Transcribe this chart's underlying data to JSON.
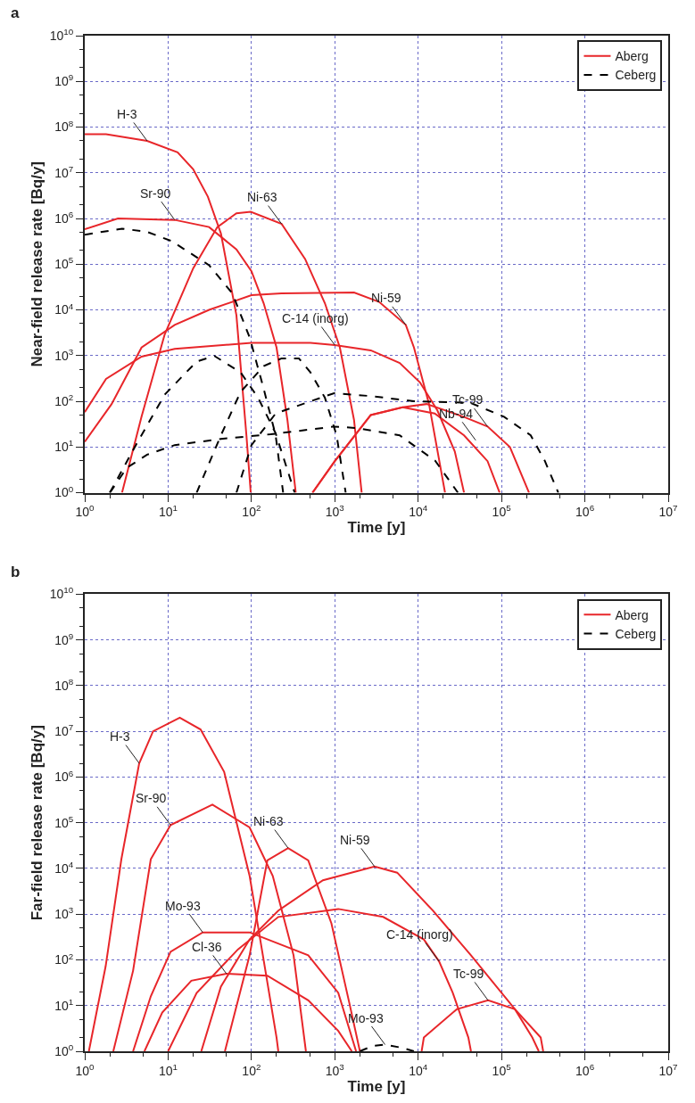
{
  "chart_data": [
    {
      "type": "line",
      "title": "a",
      "xlabel": "Time [y]",
      "ylabel": "Near-field release rate [Bq/y]",
      "log": "xy",
      "grid": true,
      "legend": "top right",
      "xlim": [
        1,
        10000000
      ],
      "ylim": [
        1,
        10000000000
      ],
      "xticks": [
        {
          "value": 1,
          "label": "10$^{0}$"
        },
        {
          "value": 10,
          "label": "10$^{1}$"
        },
        {
          "value": 100,
          "label": "10$^{2}$"
        },
        {
          "value": 1000,
          "label": "10$^{3}$"
        },
        {
          "value": 10000,
          "label": "10$^{4}$"
        },
        {
          "value": 100000,
          "label": "10$^{5}$"
        },
        {
          "value": 1000000,
          "label": "10$^{6}$"
        },
        {
          "value": 10000000,
          "label": "10$^{7}$"
        }
      ],
      "yticks": [
        {
          "value": 1,
          "label": "10$^{0}$"
        },
        {
          "value": 10,
          "label": "10$^{1}$"
        },
        {
          "value": 100,
          "label": "10$^{2}$"
        },
        {
          "value": 1000,
          "label": "10$^{3}$"
        },
        {
          "value": 10000,
          "label": "10$^{4}$"
        },
        {
          "value": 100000,
          "label": "10$^{5}$"
        },
        {
          "value": 1000000,
          "label": "10$^{6}$"
        },
        {
          "value": 10000000,
          "label": "10$^{7}$"
        },
        {
          "value": 100000000,
          "label": "10$^{8}$"
        },
        {
          "value": 1000000000,
          "label": "10$^{9}$"
        },
        {
          "value": 10000000000,
          "label": "10$^{10}$"
        }
      ],
      "series": [
        {
          "name": "Aberg",
          "color": "#e8262a",
          "line_style": "solid",
          "x": [
            1,
            1.8,
            5.6,
            13,
            20,
            30,
            43,
            66,
            87,
            98
          ],
          "values": [
            70000000,
            70000000,
            50000000,
            28000000,
            12000000,
            3000000,
            470000,
            7600,
            18,
            1
          ]
        },
        {
          "color": "#e8262a",
          "line_style": "solid",
          "x": [
            1,
            2.5,
            12,
            31,
            66,
            100,
            140,
            200,
            270,
            340
          ],
          "values": [
            580000,
            1000000,
            930000,
            650000,
            210000,
            70000,
            14000,
            1500,
            39,
            1
          ]
        },
        {
          "color": "#e8262a",
          "line_style": "solid",
          "x": [
            2.8,
            4.8,
            9.1,
            20,
            39,
            66,
            98,
            230,
            440,
            760,
            1150,
            1700,
            2100
          ],
          "values": [
            1,
            46,
            2900,
            81000,
            650000,
            1300000,
            1400000,
            760000,
            130000,
            14000,
            1500,
            39,
            1
          ]
        },
        {
          "color": "#e8262a",
          "line_style": "solid",
          "x": [
            1,
            2.1,
            4.8,
            12,
            31,
            100,
            230,
            1700,
            3400,
            7100,
            8900,
            13500,
            21000
          ],
          "values": [
            13,
            87,
            1500,
            4700,
            10000,
            21000,
            23000,
            24000,
            15000,
            4700,
            1500,
            87,
            1
          ]
        },
        {
          "color": "#e8262a",
          "line_style": "solid",
          "x": [
            1,
            1.8,
            4.8,
            12,
            100,
            510,
            1000,
            2700,
            6000,
            10500,
            17000,
            27500,
            35500
          ],
          "values": [
            58,
            310,
            950,
            1400,
            1900,
            1900,
            1700,
            1300,
            690,
            260,
            63,
            8,
            1
          ]
        },
        {
          "color": "#e8262a",
          "line_style": "solid",
          "x": [
            540,
            1000,
            2700,
            6500,
            12600,
            35000,
            68000,
            126000,
            214000
          ],
          "values": [
            1,
            4.9,
            50,
            74,
            87,
            46,
            28,
            10,
            1
          ]
        },
        {
          "color": "#e8262a",
          "line_style": "solid",
          "x": [
            540,
            1000,
            2700,
            6500,
            15800,
            35500,
            68000,
            95000
          ],
          "values": [
            1,
            4.9,
            50,
            74,
            54,
            18,
            4.9,
            1
          ]
        },
        {
          "name": "Ceberg",
          "color": "#000000",
          "line_style": "dashed",
          "x": [
            1,
            2.8,
            5.6,
            11,
            31,
            59,
            95,
            140,
            195,
            240
          ],
          "values": [
            440000,
            600000,
            510000,
            320000,
            95000,
            23000,
            2500,
            190,
            18,
            1
          ]
        },
        {
          "color": "#000000",
          "line_style": "dashed",
          "x": [
            2,
            4.1,
            9.1,
            22,
            36,
            74,
            120,
            195,
            330
          ],
          "values": [
            1,
            11,
            140,
            740,
            980,
            430,
            120,
            20,
            1
          ]
        },
        {
          "color": "#000000",
          "line_style": "dashed",
          "x": [
            22,
            43,
            74,
            140,
            230,
            370,
            510,
            760,
            1050,
            1350
          ],
          "values": [
            1,
            18,
            160,
            590,
            870,
            870,
            430,
            120,
            18,
            1
          ]
        },
        {
          "color": "#000000",
          "line_style": "dashed",
          "x": [
            66,
            100,
            195,
            510,
            980,
            2700,
            8900,
            42000,
            107000,
            224000,
            330000,
            480000
          ],
          "values": [
            1,
            11,
            54,
            100,
            150,
            130,
            100,
            93,
            46,
            18,
            5,
            1
          ]
        },
        {
          "color": "#000000",
          "line_style": "dashed",
          "x": [
            2,
            3.2,
            5.6,
            12,
            43,
            170,
            980,
            1800,
            6000,
            16000,
            30000
          ],
          "values": [
            1,
            3.5,
            6.8,
            11,
            15,
            19,
            28,
            26,
            18,
            5,
            1
          ]
        }
      ],
      "annotations": [
        {
          "text": "H-3",
          "x": 5.6,
          "y": 50000000
        },
        {
          "text": "Sr-90",
          "x": 12,
          "y": 930000
        },
        {
          "text": "Ni-63",
          "x": 230,
          "y": 760000
        },
        {
          "text": "C-14 (inorg)",
          "x": 1000,
          "y": 1700
        },
        {
          "text": "Ni-59",
          "x": 7100,
          "y": 4700
        },
        {
          "text": "Tc-99",
          "x": 68000,
          "y": 28
        },
        {
          "text": "Nb-94",
          "x": 49000,
          "y": 14
        }
      ]
    },
    {
      "type": "line",
      "title": "b",
      "xlabel": "Time [y]",
      "ylabel": "Far-field release rate [Bq/y]",
      "log": "xy",
      "grid": true,
      "legend": "top right",
      "xlim": [
        1,
        10000000
      ],
      "ylim": [
        1,
        10000000000
      ],
      "xticks": [
        {
          "value": 1,
          "label": "10$^{0}$"
        },
        {
          "value": 10,
          "label": "10$^{1}$"
        },
        {
          "value": 100,
          "label": "10$^{2}$"
        },
        {
          "value": 1000,
          "label": "10$^{3}$"
        },
        {
          "value": 10000,
          "label": "10$^{4}$"
        },
        {
          "value": 100000,
          "label": "10$^{5}$"
        },
        {
          "value": 1000000,
          "label": "10$^{6}$"
        },
        {
          "value": 10000000,
          "label": "10$^{7}$"
        }
      ],
      "yticks": [
        {
          "value": 1,
          "label": "10$^{0}$"
        },
        {
          "value": 10,
          "label": "10$^{1}$"
        },
        {
          "value": 100,
          "label": "10$^{2}$"
        },
        {
          "value": 1000,
          "label": "10$^{3}$"
        },
        {
          "value": 10000,
          "label": "10$^{4}$"
        },
        {
          "value": 100000,
          "label": "10$^{5}$"
        },
        {
          "value": 1000000,
          "label": "10$^{6}$"
        },
        {
          "value": 10000000,
          "label": "10$^{7}$"
        },
        {
          "value": 100000000,
          "label": "10$^{8}$"
        },
        {
          "value": 1000000000,
          "label": "10$^{9}$"
        },
        {
          "value": 10000000000,
          "label": "10$^{10}$"
        }
      ],
      "series": [
        {
          "name": "Aberg",
          "color": "#e8262a",
          "line_style": "solid",
          "x": [
            1.12,
            1.78,
            2.75,
            4.5,
            6.6,
            13.8,
            24.5,
            47,
            95,
            200,
            210
          ],
          "values": [
            1,
            72,
            16000,
            2000000,
            10000000,
            20000000,
            11000000,
            1300000,
            6900,
            2,
            1
          ]
        },
        {
          "color": "#e8262a",
          "line_style": "solid",
          "x": [
            2.2,
            3.8,
            6.2,
            10.7,
            34,
            95,
            180,
            320,
            450
          ],
          "values": [
            1,
            58,
            16000,
            89000,
            250000,
            79000,
            6900,
            126,
            1
          ]
        },
        {
          "color": "#e8262a",
          "line_style": "solid",
          "x": [
            3.8,
            6.2,
            10.7,
            26,
            95,
            480,
            1100,
            1800
          ],
          "values": [
            1,
            16,
            150,
            400,
            400,
            126,
            19,
            1
          ]
        },
        {
          "color": "#e8262a",
          "line_style": "solid",
          "x": [
            5.2,
            8.5,
            19,
            50,
            155,
            480,
            1100,
            1600
          ],
          "values": [
            1,
            7,
            35,
            50,
            45,
            13,
            2.8,
            1
          ]
        },
        {
          "color": "#e8262a",
          "line_style": "solid",
          "x": [
            48,
            95,
            155,
            275,
            480,
            910,
            1500,
            2000
          ],
          "values": [
            1,
            126,
            15000,
            28000,
            15000,
            630,
            11,
            1
          ]
        },
        {
          "color": "#e8262a",
          "line_style": "solid",
          "x": [
            25,
            43,
            95,
            210,
            720,
            3000,
            5600,
            15000,
            43000,
            145000,
            295000,
            316000
          ],
          "values": [
            1,
            26,
            280,
            1200,
            5500,
            11000,
            8100,
            1200,
            126,
            8.3,
            2,
            1
          ]
        },
        {
          "color": "#e8262a",
          "line_style": "solid",
          "x": [
            10,
            22,
            69,
            210,
            1100,
            3800,
            11700,
            17800,
            26000,
            40000,
            43000
          ],
          "values": [
            1,
            19,
            170,
            870,
            1300,
            870,
            280,
            93,
            19,
            2,
            1
          ]
        },
        {
          "color": "#e8262a",
          "line_style": "solid",
          "x": [
            11000,
            11700,
            29000,
            69000,
            145000,
            234000,
            280000
          ],
          "values": [
            1,
            2,
            8.3,
            13,
            8.3,
            2,
            1
          ]
        },
        {
          "name": "Ceberg",
          "color": "#000000",
          "line_style": "dashed",
          "x": [
            2000,
            2800,
            4000,
            6300,
            8900
          ],
          "values": [
            1,
            1.3,
            1.4,
            1.2,
            1
          ]
        }
      ],
      "annotations": [
        {
          "text": "H-3",
          "x": 4.5,
          "y": 2000000
        },
        {
          "text": "Sr-90",
          "x": 10.7,
          "y": 89000
        },
        {
          "text": "Mo-93",
          "x": 26,
          "y": 400
        },
        {
          "text": "Cl-36",
          "x": 50,
          "y": 50
        },
        {
          "text": "Ni-63",
          "x": 275,
          "y": 28000
        },
        {
          "text": "Ni-59",
          "x": 3000,
          "y": 11000
        },
        {
          "text": "C-14 (inorg)",
          "x": 17800,
          "y": 93
        },
        {
          "text": "Tc-99",
          "x": 69000,
          "y": 13
        },
        {
          "text": "Mo-93",
          "x": 4000,
          "y": 1.4
        }
      ]
    }
  ]
}
